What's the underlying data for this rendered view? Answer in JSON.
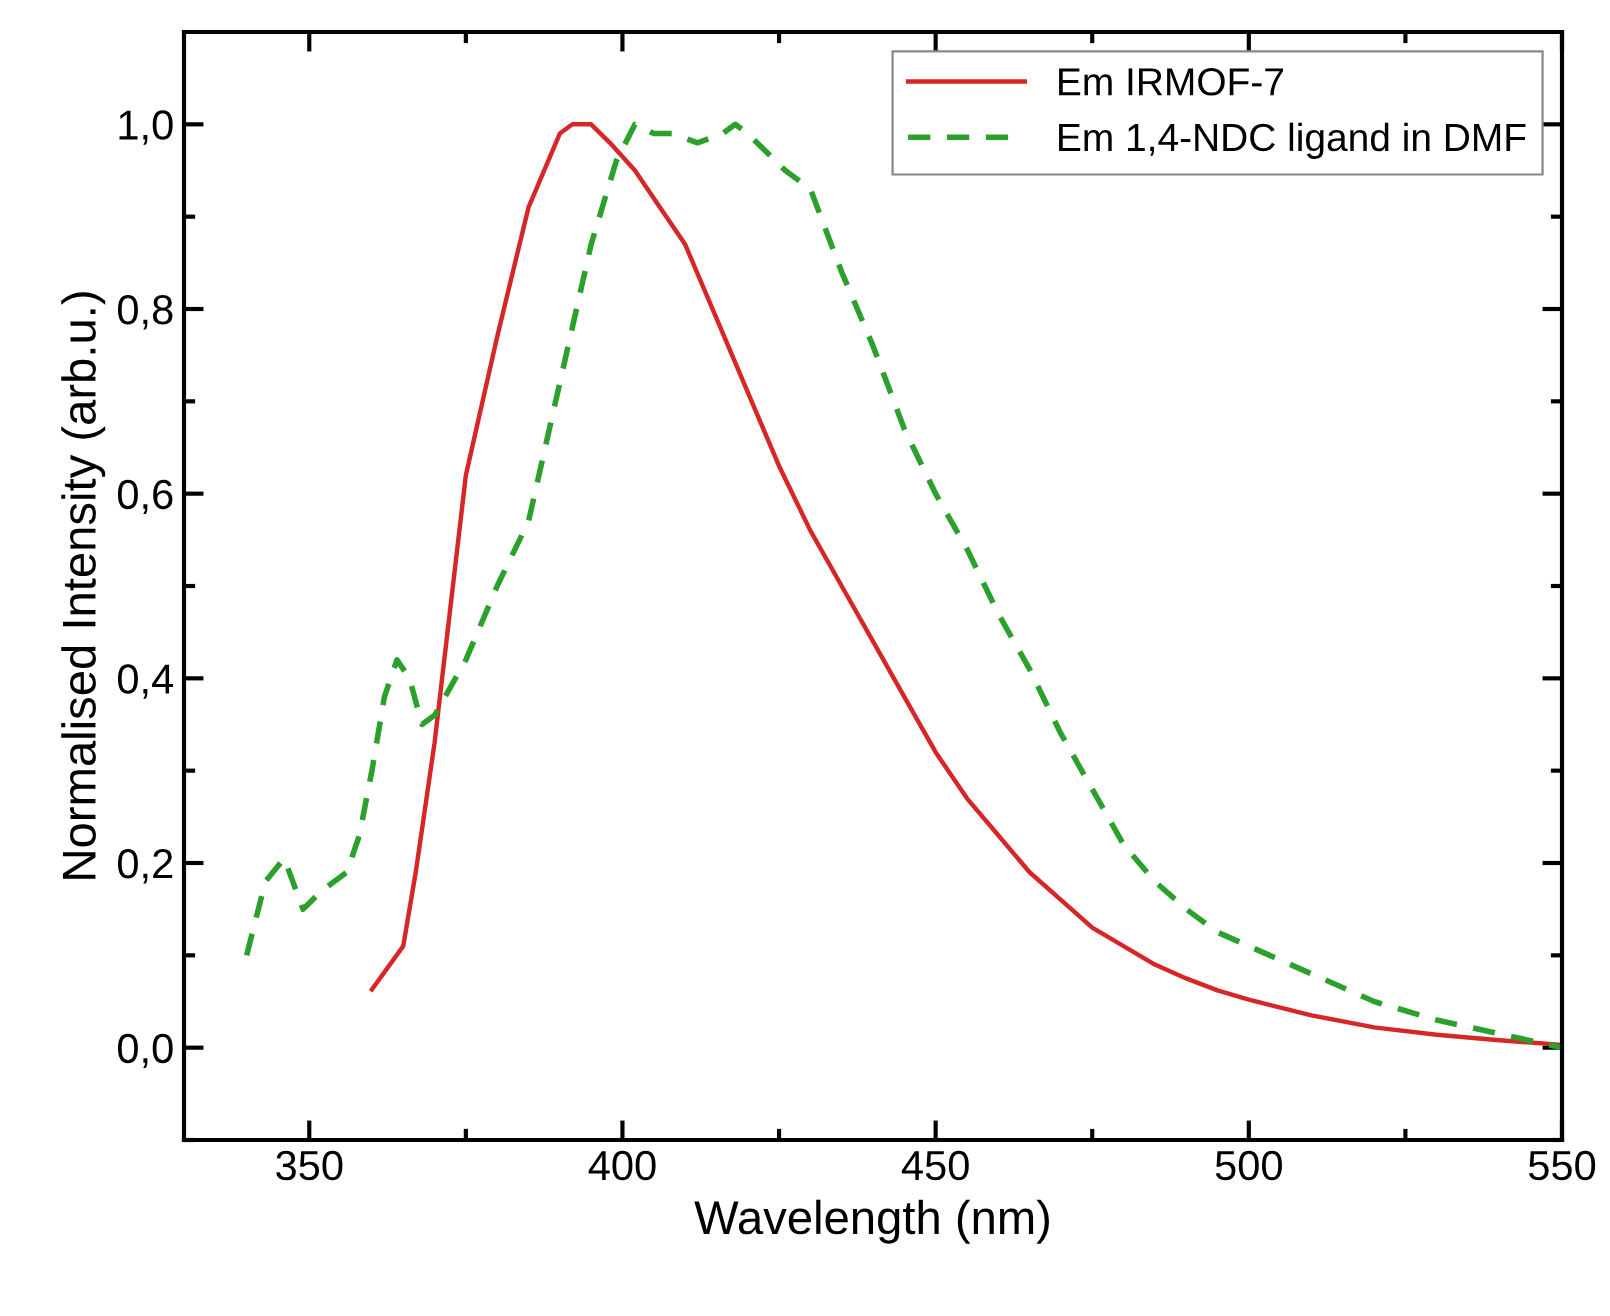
{
  "chart_data": {
    "type": "line",
    "xlabel": "Wavelength (nm)",
    "ylabel": "Normalised Intensity (arb.u.)",
    "xlim": [
      330,
      550
    ],
    "xticks": [
      350,
      400,
      450,
      500,
      550
    ],
    "ylim": [
      -0.1,
      1.1
    ],
    "yticks": [
      {
        "value": 0,
        "label": "0,0"
      },
      {
        "value": 0.2,
        "label": "0,2"
      },
      {
        "value": 0.4,
        "label": "0,4"
      },
      {
        "value": 0.6,
        "label": "0,6"
      },
      {
        "value": 0.8,
        "label": "0,8"
      },
      {
        "value": 1.0,
        "label": "1,0"
      }
    ],
    "legend": "top right",
    "grid": false,
    "marker": "none",
    "series": [
      {
        "name": "Em IRMOF-7",
        "color": "#d62728",
        "line_style": "solid",
        "x": [
          360,
          365,
          367,
          370,
          375,
          380,
          385,
          390,
          392,
          395,
          398,
          402,
          406,
          410,
          415,
          420,
          425,
          430,
          435,
          440,
          445,
          450,
          455,
          460,
          465,
          470,
          475,
          480,
          485,
          490,
          495,
          500,
          510,
          520,
          530,
          540,
          550
        ],
        "values": [
          0.063,
          0.11,
          0.19,
          0.33,
          0.62,
          0.77,
          0.91,
          0.99,
          1.0,
          1.0,
          0.98,
          0.95,
          0.91,
          0.87,
          0.79,
          0.71,
          0.63,
          0.56,
          0.5,
          0.44,
          0.38,
          0.32,
          0.27,
          0.23,
          0.19,
          0.16,
          0.13,
          0.11,
          0.09,
          0.075,
          0.062,
          0.052,
          0.035,
          0.022,
          0.014,
          0.008,
          0.003
        ]
      },
      {
        "name": "Em 1,4-NDC ligand in DMF",
        "color": "#2ca02c",
        "line_style": "dashed",
        "x": [
          340,
          343,
          346,
          349,
          352,
          356,
          358,
          360,
          362,
          364,
          366,
          368,
          370,
          375,
          380,
          385,
          390,
          395,
          399,
          402,
          405,
          408,
          412,
          416,
          418,
          420,
          423,
          426,
          430,
          435,
          440,
          445,
          450,
          455,
          460,
          465,
          470,
          475,
          480,
          485,
          490,
          495,
          500,
          510,
          520,
          530,
          540,
          550
        ],
        "values": [
          0.1,
          0.18,
          0.205,
          0.15,
          0.17,
          0.19,
          0.23,
          0.3,
          0.38,
          0.42,
          0.4,
          0.35,
          0.36,
          0.42,
          0.5,
          0.57,
          0.72,
          0.87,
          0.96,
          1.0,
          0.99,
          0.99,
          0.98,
          0.99,
          1.0,
          0.99,
          0.97,
          0.95,
          0.93,
          0.84,
          0.76,
          0.67,
          0.6,
          0.54,
          0.47,
          0.41,
          0.34,
          0.28,
          0.22,
          0.18,
          0.15,
          0.125,
          0.11,
          0.08,
          0.05,
          0.03,
          0.015,
          0.0
        ]
      }
    ]
  }
}
